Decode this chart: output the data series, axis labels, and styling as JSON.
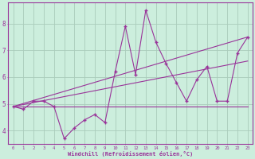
{
  "title": "",
  "xlabel": "Windchill (Refroidissement éolien,°C)",
  "ylabel": "",
  "bg_color": "#cceedd",
  "grid_color": "#aaccbb",
  "line_color": "#993399",
  "text_color": "#993399",
  "xlim": [
    -0.5,
    23.5
  ],
  "ylim": [
    3.5,
    8.8
  ],
  "xticks": [
    0,
    1,
    2,
    3,
    4,
    5,
    6,
    7,
    8,
    9,
    10,
    11,
    12,
    13,
    14,
    15,
    16,
    17,
    18,
    19,
    20,
    21,
    22,
    23
  ],
  "yticks": [
    4,
    5,
    6,
    7,
    8
  ],
  "data_x": [
    0,
    1,
    2,
    3,
    4,
    5,
    6,
    7,
    8,
    9,
    10,
    11,
    12,
    13,
    14,
    15,
    16,
    17,
    18,
    19,
    20,
    21,
    22,
    23
  ],
  "data_y": [
    4.9,
    4.8,
    5.1,
    5.1,
    4.9,
    3.7,
    4.1,
    4.4,
    4.6,
    4.3,
    6.2,
    7.9,
    6.1,
    8.5,
    7.3,
    6.5,
    5.8,
    5.1,
    5.9,
    6.4,
    5.1,
    5.1,
    6.9,
    7.5
  ],
  "trend1_x": [
    0,
    23
  ],
  "trend1_y": [
    4.9,
    4.9
  ],
  "trend2_x": [
    0,
    23
  ],
  "trend2_y": [
    4.9,
    6.6
  ],
  "trend3_x": [
    0,
    23
  ],
  "trend3_y": [
    4.9,
    7.5
  ]
}
